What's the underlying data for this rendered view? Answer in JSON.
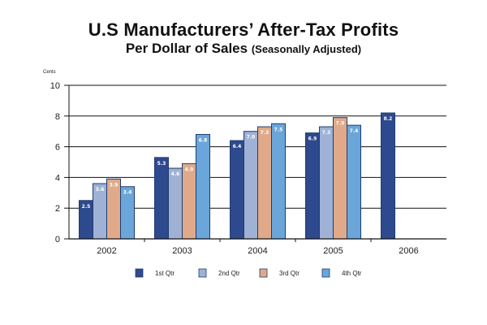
{
  "chart_data": {
    "type": "bar",
    "title": "U.S Manufacturers’ After-Tax Profits",
    "subtitle_main": "Per Dollar of Sales",
    "subtitle_note": "(Seasonally Adjusted)",
    "ylabel": "Cents",
    "xlabel": "",
    "ylim": [
      0,
      10
    ],
    "yticks": [
      "0",
      "2",
      "4",
      "6",
      "8",
      "10"
    ],
    "grid": true,
    "legend_position": "bottom",
    "categories": [
      "2002",
      "2003",
      "2004",
      "2005",
      "2006"
    ],
    "series": [
      {
        "name": "1st Qtr",
        "color": "#2e4a8e",
        "values": [
          2.5,
          5.3,
          6.4,
          6.9,
          8.2
        ],
        "labels": [
          "2.5",
          "5.3",
          "6.4",
          "6.9",
          "8.2"
        ]
      },
      {
        "name": "2nd Qtr",
        "color": "#9fb2d6",
        "values": [
          3.6,
          4.6,
          7.0,
          7.3,
          null
        ],
        "labels": [
          "3.6",
          "4.6",
          "7.0",
          "7.3",
          ""
        ]
      },
      {
        "name": "3rd Qtr",
        "color": "#e0aa8a",
        "values": [
          3.9,
          4.9,
          7.3,
          7.9,
          null
        ],
        "labels": [
          "3.9",
          "4.9",
          "7.3",
          "7.9",
          ""
        ]
      },
      {
        "name": "4th Qtr",
        "color": "#6aa6da",
        "values": [
          3.4,
          6.8,
          7.5,
          7.4,
          null
        ],
        "labels": [
          "3.4",
          "6.8",
          "7.5",
          "7.4",
          ""
        ]
      }
    ]
  }
}
